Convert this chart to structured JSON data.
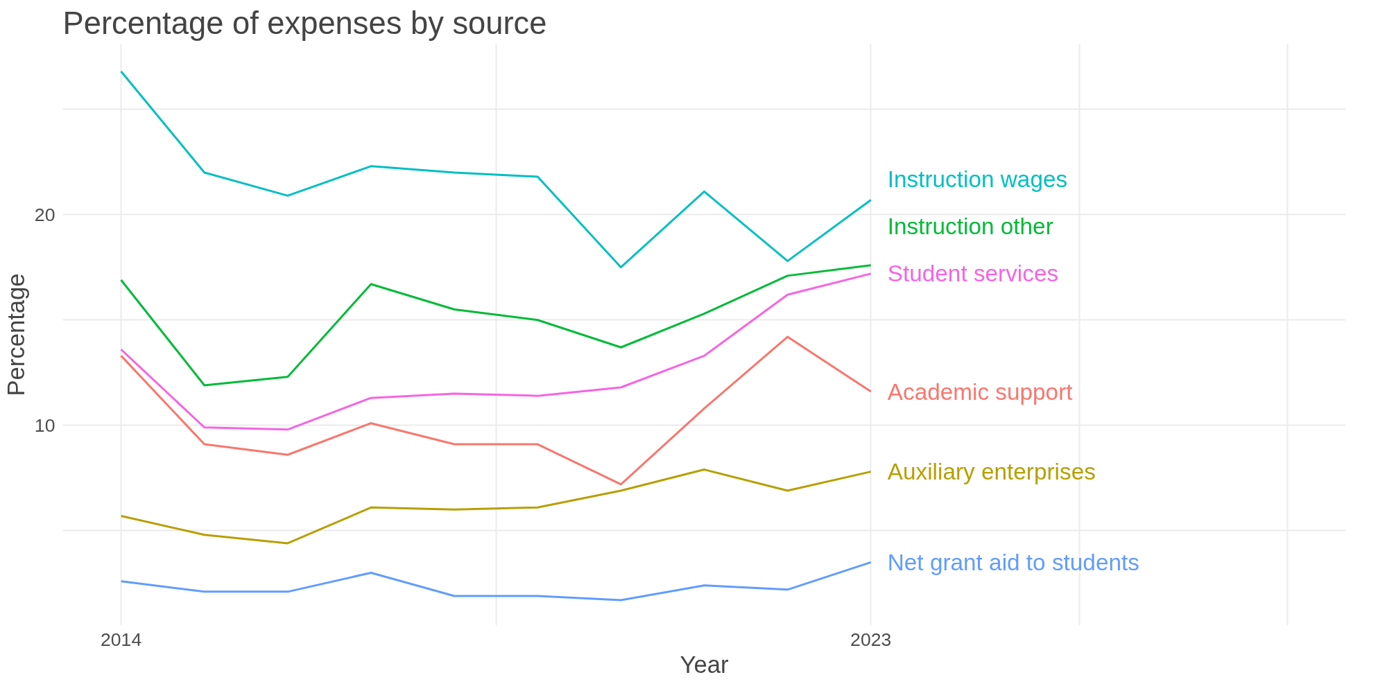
{
  "chart_data": {
    "type": "line",
    "title": "Percentage of expenses by source",
    "xlabel": "Year",
    "ylabel": "Percentage",
    "x": [
      2014,
      2015,
      2016,
      2017,
      2018,
      2019,
      2020,
      2021,
      2022,
      2023
    ],
    "xlim": [
      2013.3,
      2028.7
    ],
    "xticks": [
      2014,
      {
        "value": 2018.5,
        "label": null
      },
      2023,
      {
        "value": 2025.5,
        "label": null
      },
      {
        "value": 2028,
        "label": null
      }
    ],
    "ylim": [
      0.5,
      28.1
    ],
    "yticks": [
      {
        "value": 5,
        "label": null
      },
      10,
      {
        "value": 15,
        "label": null
      },
      20,
      {
        "value": 25,
        "label": null
      }
    ],
    "grid": true,
    "marker": "none",
    "line_style": "solid",
    "series": [
      {
        "name": "Academic support",
        "color": "#F8766D",
        "values": [
          13.3,
          9.1,
          8.6,
          10.1,
          9.1,
          9.1,
          7.2,
          10.8,
          14.2,
          11.6
        ]
      },
      {
        "name": "Auxiliary enterprises",
        "color": "#B79F00",
        "values": [
          5.7,
          4.8,
          4.4,
          6.1,
          6.0,
          6.1,
          6.9,
          7.9,
          6.9,
          7.8
        ]
      },
      {
        "name": "Instruction other",
        "color": "#00BA38",
        "values": [
          16.9,
          11.9,
          12.3,
          16.7,
          15.5,
          15.0,
          13.7,
          15.3,
          17.1,
          17.6
        ]
      },
      {
        "name": "Instruction wages",
        "color": "#00BFC4",
        "values": [
          26.8,
          22.0,
          20.9,
          22.3,
          22.0,
          21.8,
          17.5,
          21.1,
          17.8,
          20.7
        ]
      },
      {
        "name": "Net grant aid to students",
        "color": "#619CFF",
        "values": [
          2.6,
          2.1,
          2.1,
          3.0,
          1.9,
          1.9,
          1.7,
          2.4,
          2.2,
          3.5
        ]
      },
      {
        "name": "Student services",
        "color": "#F564E3",
        "values": [
          13.6,
          9.9,
          9.8,
          11.3,
          11.5,
          11.4,
          11.8,
          13.3,
          16.2,
          17.2
        ]
      }
    ]
  }
}
